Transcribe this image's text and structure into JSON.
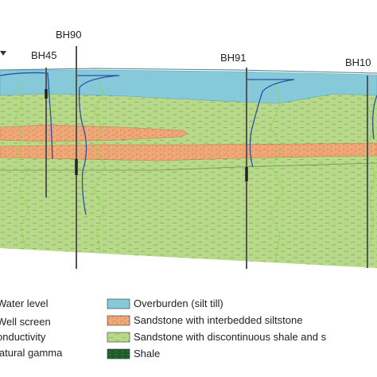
{
  "boreholes": [
    {
      "label": "BH90"
    },
    {
      "label": "BH45"
    },
    {
      "label": "BH91"
    },
    {
      "label": "BH10"
    }
  ],
  "legend": {
    "symbols": [
      {
        "label": "Water level"
      },
      {
        "label": "Well screen"
      },
      {
        "label": "onductivity"
      },
      {
        "label": "latural gamma"
      }
    ],
    "units": [
      {
        "label": "Overburden (silt till)",
        "color": "#7cc4d6"
      },
      {
        "label": "Sandstone with interbedded siltstone",
        "color": "#f2b08a"
      },
      {
        "label": "Sandstone with discontinuous shale and s",
        "color": "#b9d98c"
      },
      {
        "label": "Shale",
        "color": "#1e5a2a"
      }
    ]
  },
  "colors": {
    "overburden": "#86c9d9",
    "sandstone_interbedded": "#f0a878",
    "sandstone_shale": "#b9d98a",
    "conductivity": "#2a4fa8",
    "gamma": "#8fd650",
    "borehole": "#555555"
  }
}
